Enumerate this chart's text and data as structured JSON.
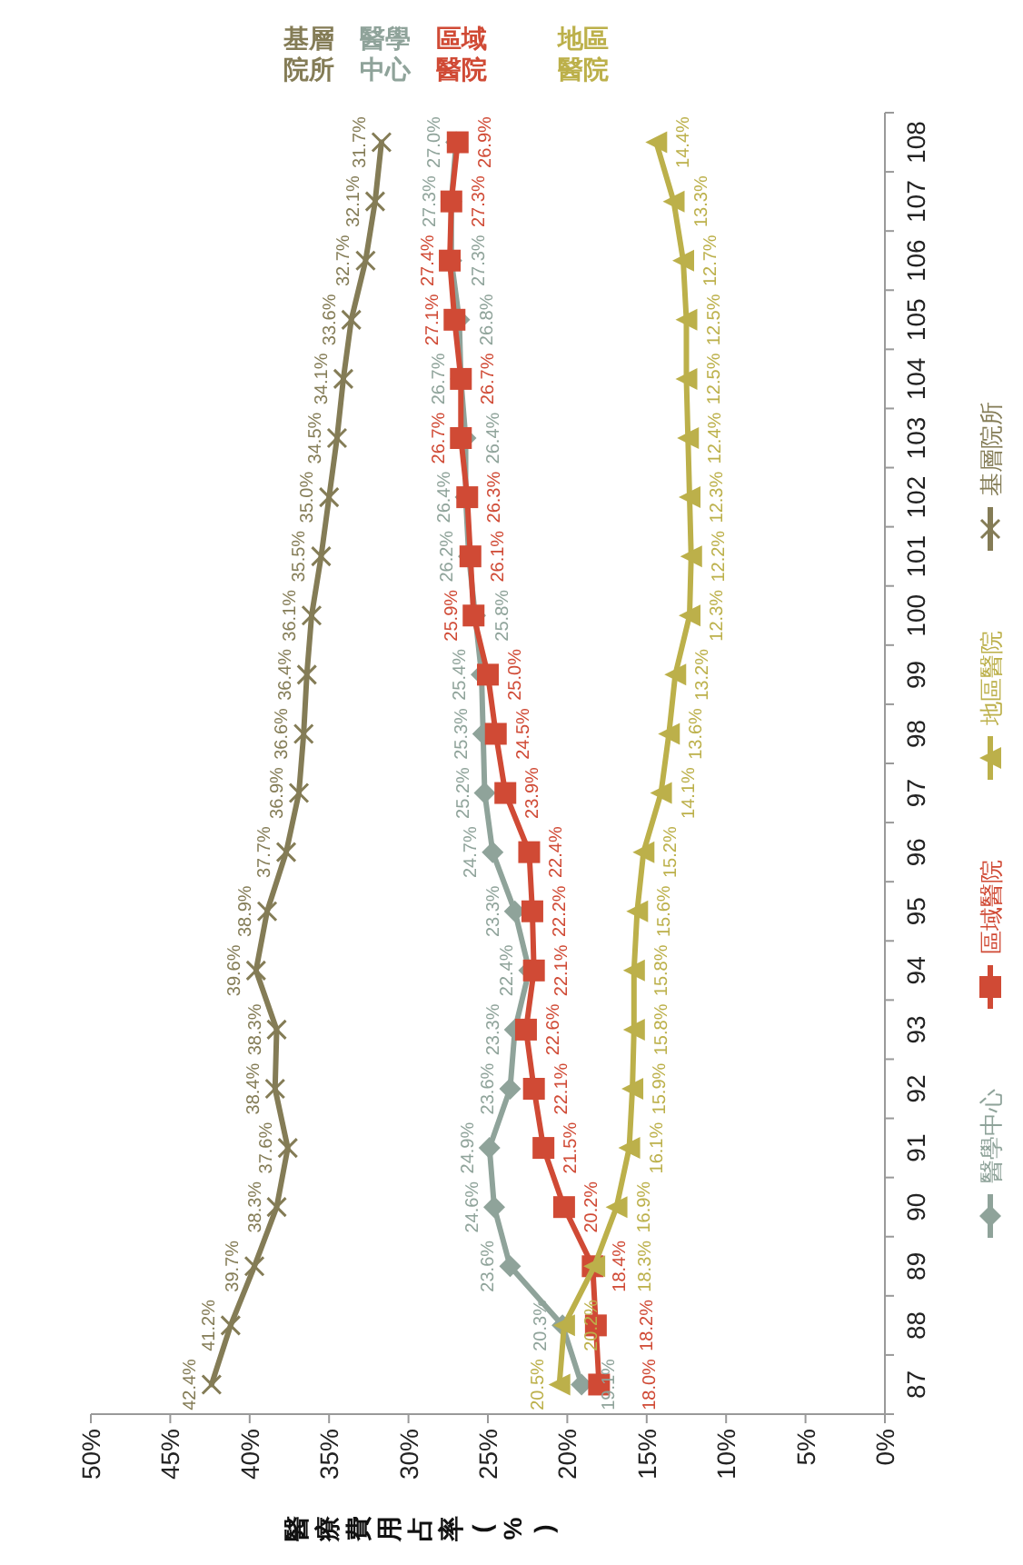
{
  "chart_data": {
    "type": "line",
    "orientation": "horizontal",
    "xlabel": "醫療費用占率(%)",
    "categories": [
      "108",
      "107",
      "106",
      "105",
      "104",
      "103",
      "102",
      "101",
      "100",
      "99",
      "98",
      "97",
      "96",
      "95",
      "94",
      "93",
      "92",
      "91",
      "90",
      "89",
      "88",
      "87"
    ],
    "xlim": [
      50,
      0
    ],
    "xticks": [
      {
        "value": 50,
        "label": "50%"
      },
      {
        "value": 45,
        "label": "45%"
      },
      {
        "value": 40,
        "label": "40%"
      },
      {
        "value": 35,
        "label": "35%"
      },
      {
        "value": 30,
        "label": "30%"
      },
      {
        "value": 25,
        "label": "25%"
      },
      {
        "value": 20,
        "label": "20%"
      },
      {
        "value": 15,
        "label": "15%"
      },
      {
        "value": 10,
        "label": "10%"
      },
      {
        "value": 5,
        "label": "5%"
      },
      {
        "value": 0,
        "label": "0%"
      }
    ],
    "legend": "right",
    "annotations": [
      {
        "text": "基層院所",
        "x": 31.7,
        "y": "108"
      },
      {
        "text": "醫學中心",
        "x": 27.0,
        "y": "108"
      },
      {
        "text": "區域醫院",
        "x": 26.9,
        "y": "108"
      },
      {
        "text": "地區醫院",
        "x": 14.4,
        "y": "108"
      }
    ],
    "series": [
      {
        "name": "醫學中心",
        "color": "#8fa39a",
        "marker": "diamond",
        "values": [
          27.0,
          27.3,
          27.3,
          26.8,
          26.7,
          26.4,
          26.4,
          26.2,
          25.8,
          25.4,
          25.3,
          25.2,
          24.7,
          23.3,
          22.4,
          23.3,
          23.6,
          24.9,
          24.6,
          23.6,
          20.3,
          19.1
        ],
        "value_labels": [
          "27.0%",
          "27.3%",
          "27.3%",
          "26.8%",
          "26.7%",
          "26.4%",
          "26.4%",
          "26.2%",
          "25.8%",
          "25.4%",
          "25.3%",
          "25.2%",
          "24.7%",
          "23.3%",
          "22.4%",
          "23.3%",
          "23.6%",
          "24.9%",
          "24.6%",
          "23.6%",
          "20.3%",
          "19.1%"
        ]
      },
      {
        "name": "區域醫院",
        "color": "#d04a35",
        "marker": "square",
        "values": [
          26.9,
          27.3,
          27.4,
          27.1,
          26.7,
          26.7,
          26.3,
          26.1,
          25.9,
          25.0,
          24.5,
          23.9,
          22.4,
          22.2,
          22.1,
          22.6,
          22.1,
          21.5,
          20.2,
          18.4,
          18.2,
          18.0
        ],
        "value_labels": [
          "26.9%",
          "27.3%",
          "27.4%",
          "27.1%",
          "26.7%",
          "26.7%",
          "26.3%",
          "26.1%",
          "25.9%",
          "25.0%",
          "24.5%",
          "23.9%",
          "22.4%",
          "22.2%",
          "22.1%",
          "22.6%",
          "22.1%",
          "21.5%",
          "20.2%",
          "18.4%",
          "18.2%",
          "18.0%"
        ]
      },
      {
        "name": "地區醫院",
        "color": "#bcb04a",
        "marker": "triangle",
        "values": [
          14.4,
          13.3,
          12.7,
          12.5,
          12.5,
          12.4,
          12.3,
          12.2,
          12.3,
          13.2,
          13.6,
          14.1,
          15.2,
          15.6,
          15.8,
          15.8,
          15.9,
          16.1,
          16.9,
          18.3,
          20.2,
          20.5
        ],
        "value_labels": [
          "14.4%",
          "13.3%",
          "12.7%",
          "12.5%",
          "12.5%",
          "12.4%",
          "12.3%",
          "12.2%",
          "12.3%",
          "13.2%",
          "13.6%",
          "14.1%",
          "15.2%",
          "15.6%",
          "15.8%",
          "15.8%",
          "15.9%",
          "16.1%",
          "16.9%",
          "18.3%",
          "20.2%",
          "20.5%"
        ]
      },
      {
        "name": "基層院所",
        "color": "#847c56",
        "marker": "cross",
        "values": [
          31.7,
          32.1,
          32.7,
          33.6,
          34.1,
          34.5,
          35.0,
          35.5,
          36.1,
          36.4,
          36.6,
          36.9,
          37.7,
          38.9,
          39.6,
          38.3,
          38.4,
          37.6,
          38.3,
          39.7,
          41.2,
          42.4
        ],
        "value_labels": [
          "31.7%",
          "32.1%",
          "32.7%",
          "33.6%",
          "34.1%",
          "34.5%",
          "35.0%",
          "35.5%",
          "36.1%",
          "36.4%",
          "36.6%",
          "36.9%",
          "37.7%",
          "38.9%",
          "39.6%",
          "38.3%",
          "38.4%",
          "37.6%",
          "38.3%",
          "39.7%",
          "41.2%",
          "42.4%"
        ]
      }
    ]
  }
}
